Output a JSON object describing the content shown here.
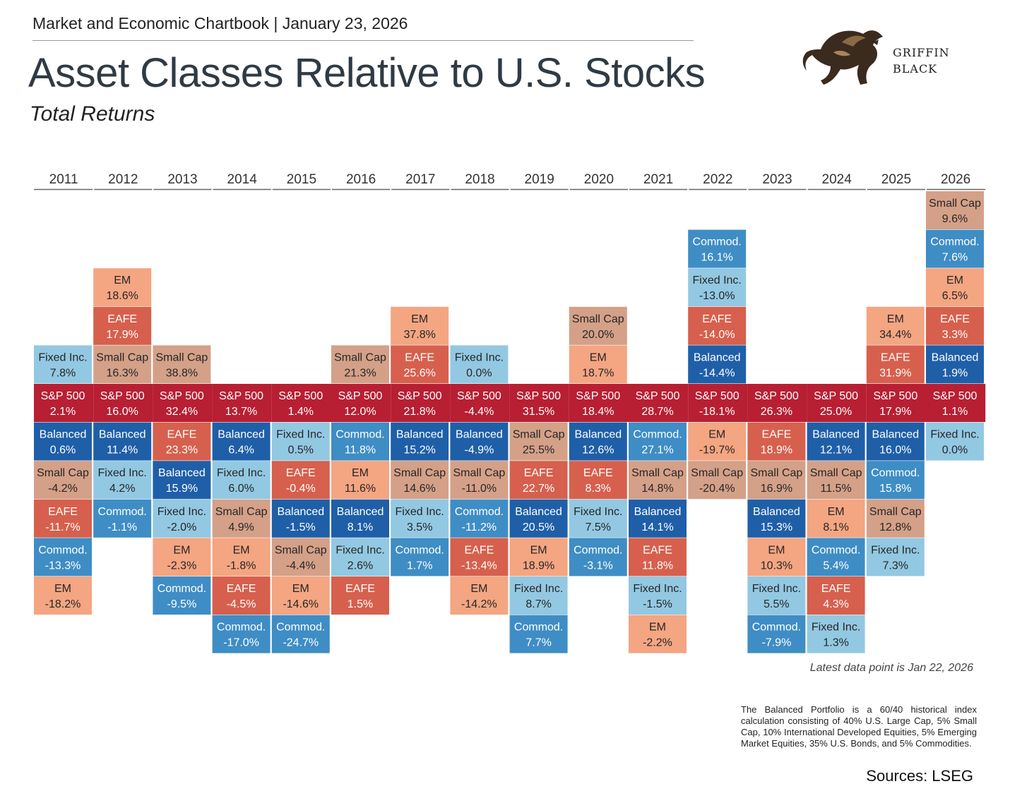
{
  "header": {
    "chartbook_line": "Market and Economic Chartbook | January 23, 2026",
    "title": "Asset Classes Relative to U.S. Stocks",
    "subtitle": "Total Returns"
  },
  "logo": {
    "line1": "GRIFFIN",
    "line2": "BLACK"
  },
  "colors": {
    "S&P 500": "#b81f33",
    "Balanced": "#1f5fa8",
    "Commod.": "#3f8dc5",
    "Fixed Inc.": "#93c8e2",
    "Small Cap": "#d4a088",
    "EM": "#f4a582",
    "EAFE": "#d6604d"
  },
  "chart_data": {
    "type": "table",
    "anchor_asset": "S&P 500",
    "columns": [
      {
        "year": "2011",
        "above": [
          [
            "Fixed Inc.",
            "7.8%"
          ]
        ],
        "sp500": "2.1%",
        "below": [
          [
            "Balanced",
            "0.6%"
          ],
          [
            "Small Cap",
            "-4.2%"
          ],
          [
            "EAFE",
            "-11.7%"
          ],
          [
            "Commod.",
            "-13.3%"
          ],
          [
            "EM",
            "-18.2%"
          ]
        ]
      },
      {
        "year": "2012",
        "above": [
          [
            "EM",
            "18.6%"
          ],
          [
            "EAFE",
            "17.9%"
          ],
          [
            "Small Cap",
            "16.3%"
          ]
        ],
        "sp500": "16.0%",
        "below": [
          [
            "Balanced",
            "11.4%"
          ],
          [
            "Fixed Inc.",
            "4.2%"
          ],
          [
            "Commod.",
            "-1.1%"
          ]
        ]
      },
      {
        "year": "2013",
        "above": [
          [
            "Small Cap",
            "38.8%"
          ]
        ],
        "sp500": "32.4%",
        "below": [
          [
            "EAFE",
            "23.3%"
          ],
          [
            "Balanced",
            "15.9%"
          ],
          [
            "Fixed Inc.",
            "-2.0%"
          ],
          [
            "EM",
            "-2.3%"
          ],
          [
            "Commod.",
            "-9.5%"
          ]
        ]
      },
      {
        "year": "2014",
        "above": [],
        "sp500": "13.7%",
        "below": [
          [
            "Balanced",
            "6.4%"
          ],
          [
            "Fixed Inc.",
            "6.0%"
          ],
          [
            "Small Cap",
            "4.9%"
          ],
          [
            "EM",
            "-1.8%"
          ],
          [
            "EAFE",
            "-4.5%"
          ],
          [
            "Commod.",
            "-17.0%"
          ]
        ]
      },
      {
        "year": "2015",
        "above": [],
        "sp500": "1.4%",
        "below": [
          [
            "Fixed Inc.",
            "0.5%"
          ],
          [
            "EAFE",
            "-0.4%"
          ],
          [
            "Balanced",
            "-1.5%"
          ],
          [
            "Small Cap",
            "-4.4%"
          ],
          [
            "EM",
            "-14.6%"
          ],
          [
            "Commod.",
            "-24.7%"
          ]
        ]
      },
      {
        "year": "2016",
        "above": [
          [
            "Small Cap",
            "21.3%"
          ]
        ],
        "sp500": "12.0%",
        "below": [
          [
            "Commod.",
            "11.8%"
          ],
          [
            "EM",
            "11.6%"
          ],
          [
            "Balanced",
            "8.1%"
          ],
          [
            "Fixed Inc.",
            "2.6%"
          ],
          [
            "EAFE",
            "1.5%"
          ]
        ]
      },
      {
        "year": "2017",
        "above": [
          [
            "EM",
            "37.8%"
          ],
          [
            "EAFE",
            "25.6%"
          ]
        ],
        "sp500": "21.8%",
        "below": [
          [
            "Balanced",
            "15.2%"
          ],
          [
            "Small Cap",
            "14.6%"
          ],
          [
            "Fixed Inc.",
            "3.5%"
          ],
          [
            "Commod.",
            "1.7%"
          ]
        ]
      },
      {
        "year": "2018",
        "above": [
          [
            "Fixed Inc.",
            "0.0%"
          ]
        ],
        "sp500": "-4.4%",
        "below": [
          [
            "Balanced",
            "-4.9%"
          ],
          [
            "Small Cap",
            "-11.0%"
          ],
          [
            "Commod.",
            "-11.2%"
          ],
          [
            "EAFE",
            "-13.4%"
          ],
          [
            "EM",
            "-14.2%"
          ]
        ]
      },
      {
        "year": "2019",
        "above": [],
        "sp500": "31.5%",
        "below": [
          [
            "Small Cap",
            "25.5%"
          ],
          [
            "EAFE",
            "22.7%"
          ],
          [
            "Balanced",
            "20.5%"
          ],
          [
            "EM",
            "18.9%"
          ],
          [
            "Fixed Inc.",
            "8.7%"
          ],
          [
            "Commod.",
            "7.7%"
          ]
        ]
      },
      {
        "year": "2020",
        "above": [
          [
            "Small Cap",
            "20.0%"
          ],
          [
            "EM",
            "18.7%"
          ]
        ],
        "sp500": "18.4%",
        "below": [
          [
            "Balanced",
            "12.6%"
          ],
          [
            "EAFE",
            "8.3%"
          ],
          [
            "Fixed Inc.",
            "7.5%"
          ],
          [
            "Commod.",
            "-3.1%"
          ]
        ]
      },
      {
        "year": "2021",
        "above": [],
        "sp500": "28.7%",
        "below": [
          [
            "Commod.",
            "27.1%"
          ],
          [
            "Small Cap",
            "14.8%"
          ],
          [
            "Balanced",
            "14.1%"
          ],
          [
            "EAFE",
            "11.8%"
          ],
          [
            "Fixed Inc.",
            "-1.5%"
          ],
          [
            "EM",
            "-2.2%"
          ]
        ]
      },
      {
        "year": "2022",
        "above": [
          [
            "Commod.",
            "16.1%"
          ],
          [
            "Fixed Inc.",
            "-13.0%"
          ],
          [
            "EAFE",
            "-14.0%"
          ],
          [
            "Balanced",
            "-14.4%"
          ]
        ],
        "sp500": "-18.1%",
        "below": [
          [
            "EM",
            "-19.7%"
          ],
          [
            "Small Cap",
            "-20.4%"
          ]
        ]
      },
      {
        "year": "2023",
        "above": [],
        "sp500": "26.3%",
        "below": [
          [
            "EAFE",
            "18.9%"
          ],
          [
            "Small Cap",
            "16.9%"
          ],
          [
            "Balanced",
            "15.3%"
          ],
          [
            "EM",
            "10.3%"
          ],
          [
            "Fixed Inc.",
            "5.5%"
          ],
          [
            "Commod.",
            "-7.9%"
          ]
        ]
      },
      {
        "year": "2024",
        "above": [],
        "sp500": "25.0%",
        "below": [
          [
            "Balanced",
            "12.1%"
          ],
          [
            "Small Cap",
            "11.5%"
          ],
          [
            "EM",
            "8.1%"
          ],
          [
            "Commod.",
            "5.4%"
          ],
          [
            "EAFE",
            "4.3%"
          ],
          [
            "Fixed Inc.",
            "1.3%"
          ]
        ]
      },
      {
        "year": "2025",
        "above": [
          [
            "EM",
            "34.4%"
          ],
          [
            "EAFE",
            "31.9%"
          ]
        ],
        "sp500": "17.9%",
        "below": [
          [
            "Balanced",
            "16.0%"
          ],
          [
            "Commod.",
            "15.8%"
          ],
          [
            "Small Cap",
            "12.8%"
          ],
          [
            "Fixed Inc.",
            "7.3%"
          ]
        ]
      },
      {
        "year": "2026",
        "above": [
          [
            "Small Cap",
            "9.6%"
          ],
          [
            "Commod.",
            "7.6%"
          ],
          [
            "EM",
            "6.5%"
          ],
          [
            "EAFE",
            "3.3%"
          ],
          [
            "Balanced",
            "1.9%"
          ]
        ],
        "sp500": "1.1%",
        "below": [
          [
            "Fixed Inc.",
            "0.0%"
          ]
        ]
      }
    ]
  },
  "notes": {
    "latest": "Latest data point is Jan 22, 2026",
    "balanced_note": "The Balanced Portfolio is a 60/40 historical index calculation consisting of 40% U.S. Large Cap, 5% Small Cap, 10% International Developed Equities, 5% Emerging Market Equities, 35% U.S. Bonds, and 5% Commodities.",
    "sources": "Sources: LSEG"
  }
}
